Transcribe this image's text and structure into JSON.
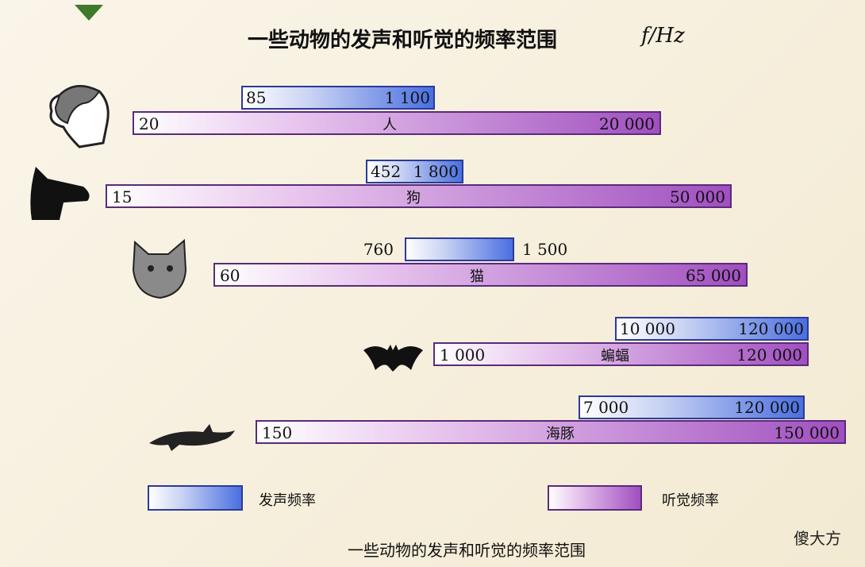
{
  "title": "一些动物的发声和听觉的频率范围",
  "unit": "f/Hz",
  "animals": [
    {
      "name": "人",
      "voice": [
        "85",
        "1 100"
      ],
      "hearing": [
        "20",
        "20 000"
      ]
    },
    {
      "name": "狗",
      "voice": [
        "452",
        "1 800"
      ],
      "hearing": [
        "15",
        "50 000"
      ]
    },
    {
      "name": "猫",
      "voice": [
        "760",
        "1 500"
      ],
      "hearing": [
        "60",
        "65 000"
      ]
    },
    {
      "name": "蝙蝠",
      "voice": [
        "10 000",
        "120 000"
      ],
      "hearing": [
        "1 000",
        "120 000"
      ]
    },
    {
      "name": "海豚",
      "voice": [
        "7 000",
        "120 000"
      ],
      "hearing": [
        "150",
        "150 000"
      ]
    }
  ],
  "legend": [
    "发声频率",
    "听觉频率"
  ],
  "caption": "一些动物的发声和听觉的频率范围",
  "watermark": "傻大方"
}
